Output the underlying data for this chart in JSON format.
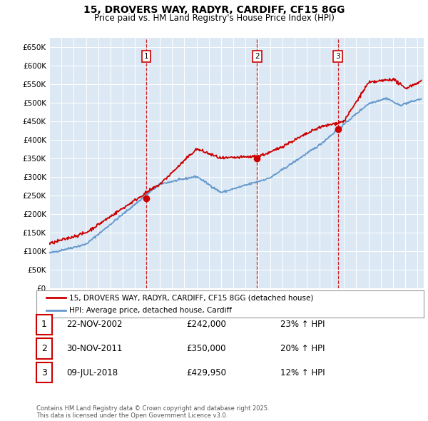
{
  "title": "15, DROVERS WAY, RADYR, CARDIFF, CF15 8GG",
  "subtitle": "Price paid vs. HM Land Registry's House Price Index (HPI)",
  "ylim": [
    0,
    675000
  ],
  "ytick_vals": [
    0,
    50000,
    100000,
    150000,
    200000,
    250000,
    300000,
    350000,
    400000,
    450000,
    500000,
    550000,
    600000,
    650000
  ],
  "plot_bg": "#dce9f5",
  "grid_color": "#b8cfe0",
  "line1_color": "#cc0000",
  "line2_color": "#6699cc",
  "sale1_date": 2002.9,
  "sale1_price": 242000,
  "sale2_date": 2011.92,
  "sale2_price": 350000,
  "sale3_date": 2018.52,
  "sale3_price": 429950,
  "legend1": "15, DROVERS WAY, RADYR, CARDIFF, CF15 8GG (detached house)",
  "legend2": "HPI: Average price, detached house, Cardiff",
  "table_rows": [
    {
      "num": "1",
      "date": "22-NOV-2002",
      "price": "£242,000",
      "change": "23% ↑ HPI"
    },
    {
      "num": "2",
      "date": "30-NOV-2011",
      "price": "£350,000",
      "change": "20% ↑ HPI"
    },
    {
      "num": "3",
      "date": "09-JUL-2018",
      "price": "£429,950",
      "change": "12% ↑ HPI"
    }
  ],
  "footer": "Contains HM Land Registry data © Crown copyright and database right 2025.\nThis data is licensed under the Open Government Licence v3.0."
}
